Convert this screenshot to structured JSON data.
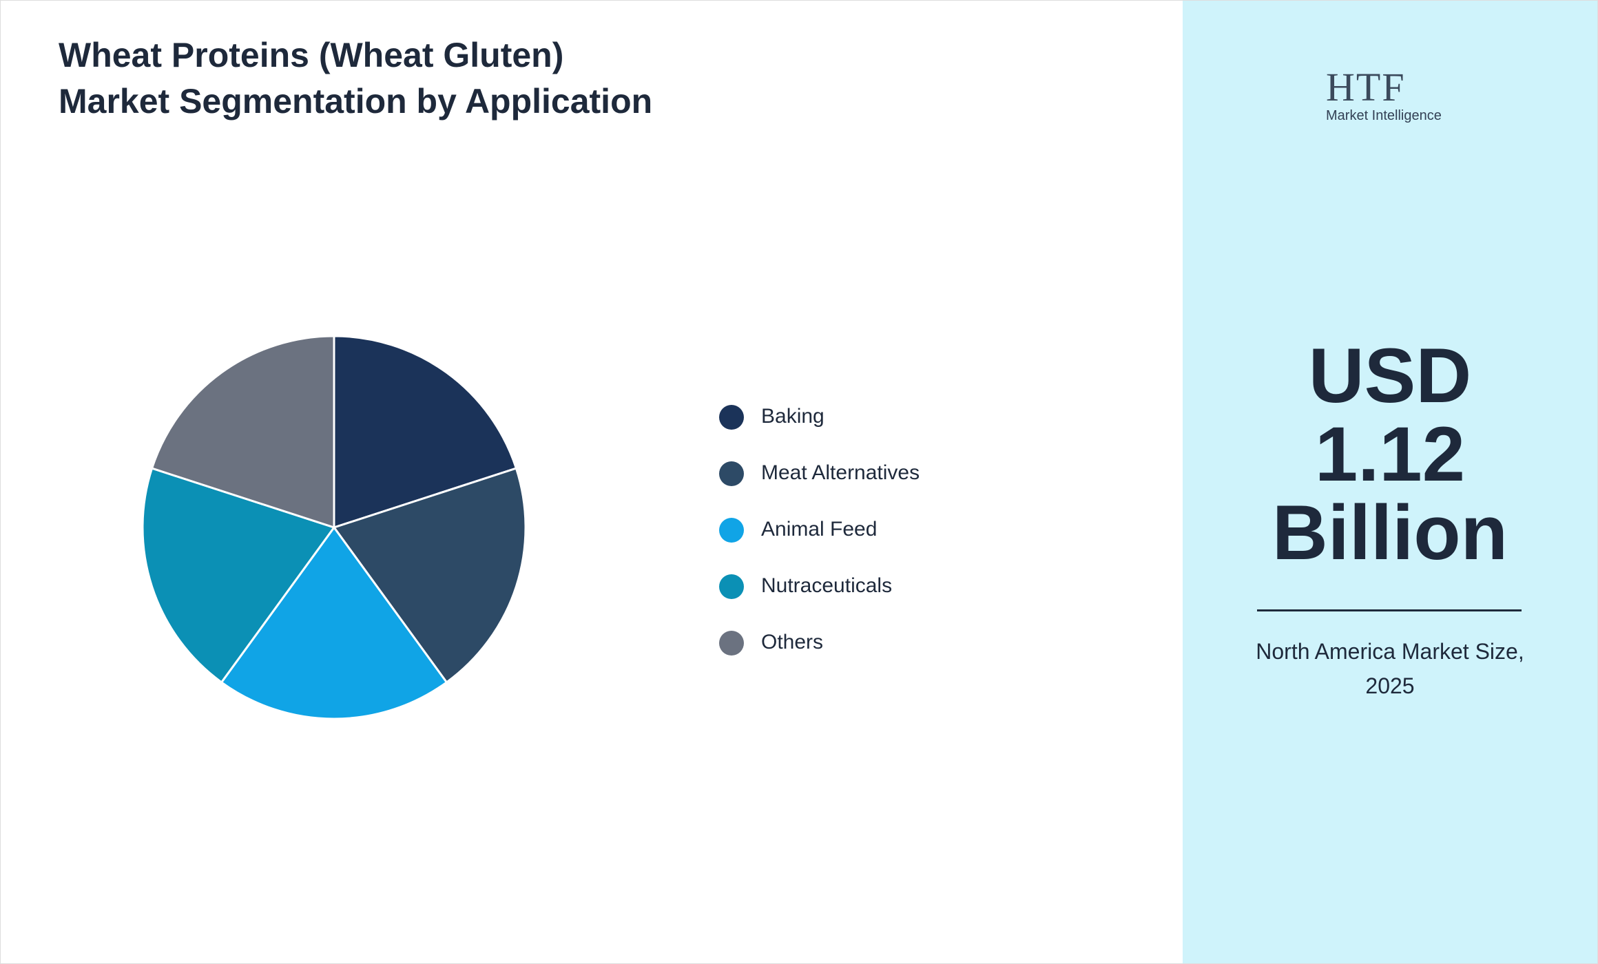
{
  "chart_data": {
    "type": "pie",
    "title": "Wheat Proteins (Wheat Gluten) Market Segmentation by Application",
    "categories": [
      "Baking",
      "Meat Alternatives",
      "Animal Feed",
      "Nutraceuticals",
      "Others"
    ],
    "values": [
      20,
      20,
      20,
      20,
      20
    ],
    "colors": [
      "#1b3359",
      "#2d4a66",
      "#10a4e6",
      "#0b90b5",
      "#6b7280"
    ]
  },
  "logo": {
    "mark": "HTF",
    "tagline": "Market Intelligence"
  },
  "highlight": {
    "value": "USD 1.12 Billion",
    "caption": "North America Market Size, 2025"
  }
}
